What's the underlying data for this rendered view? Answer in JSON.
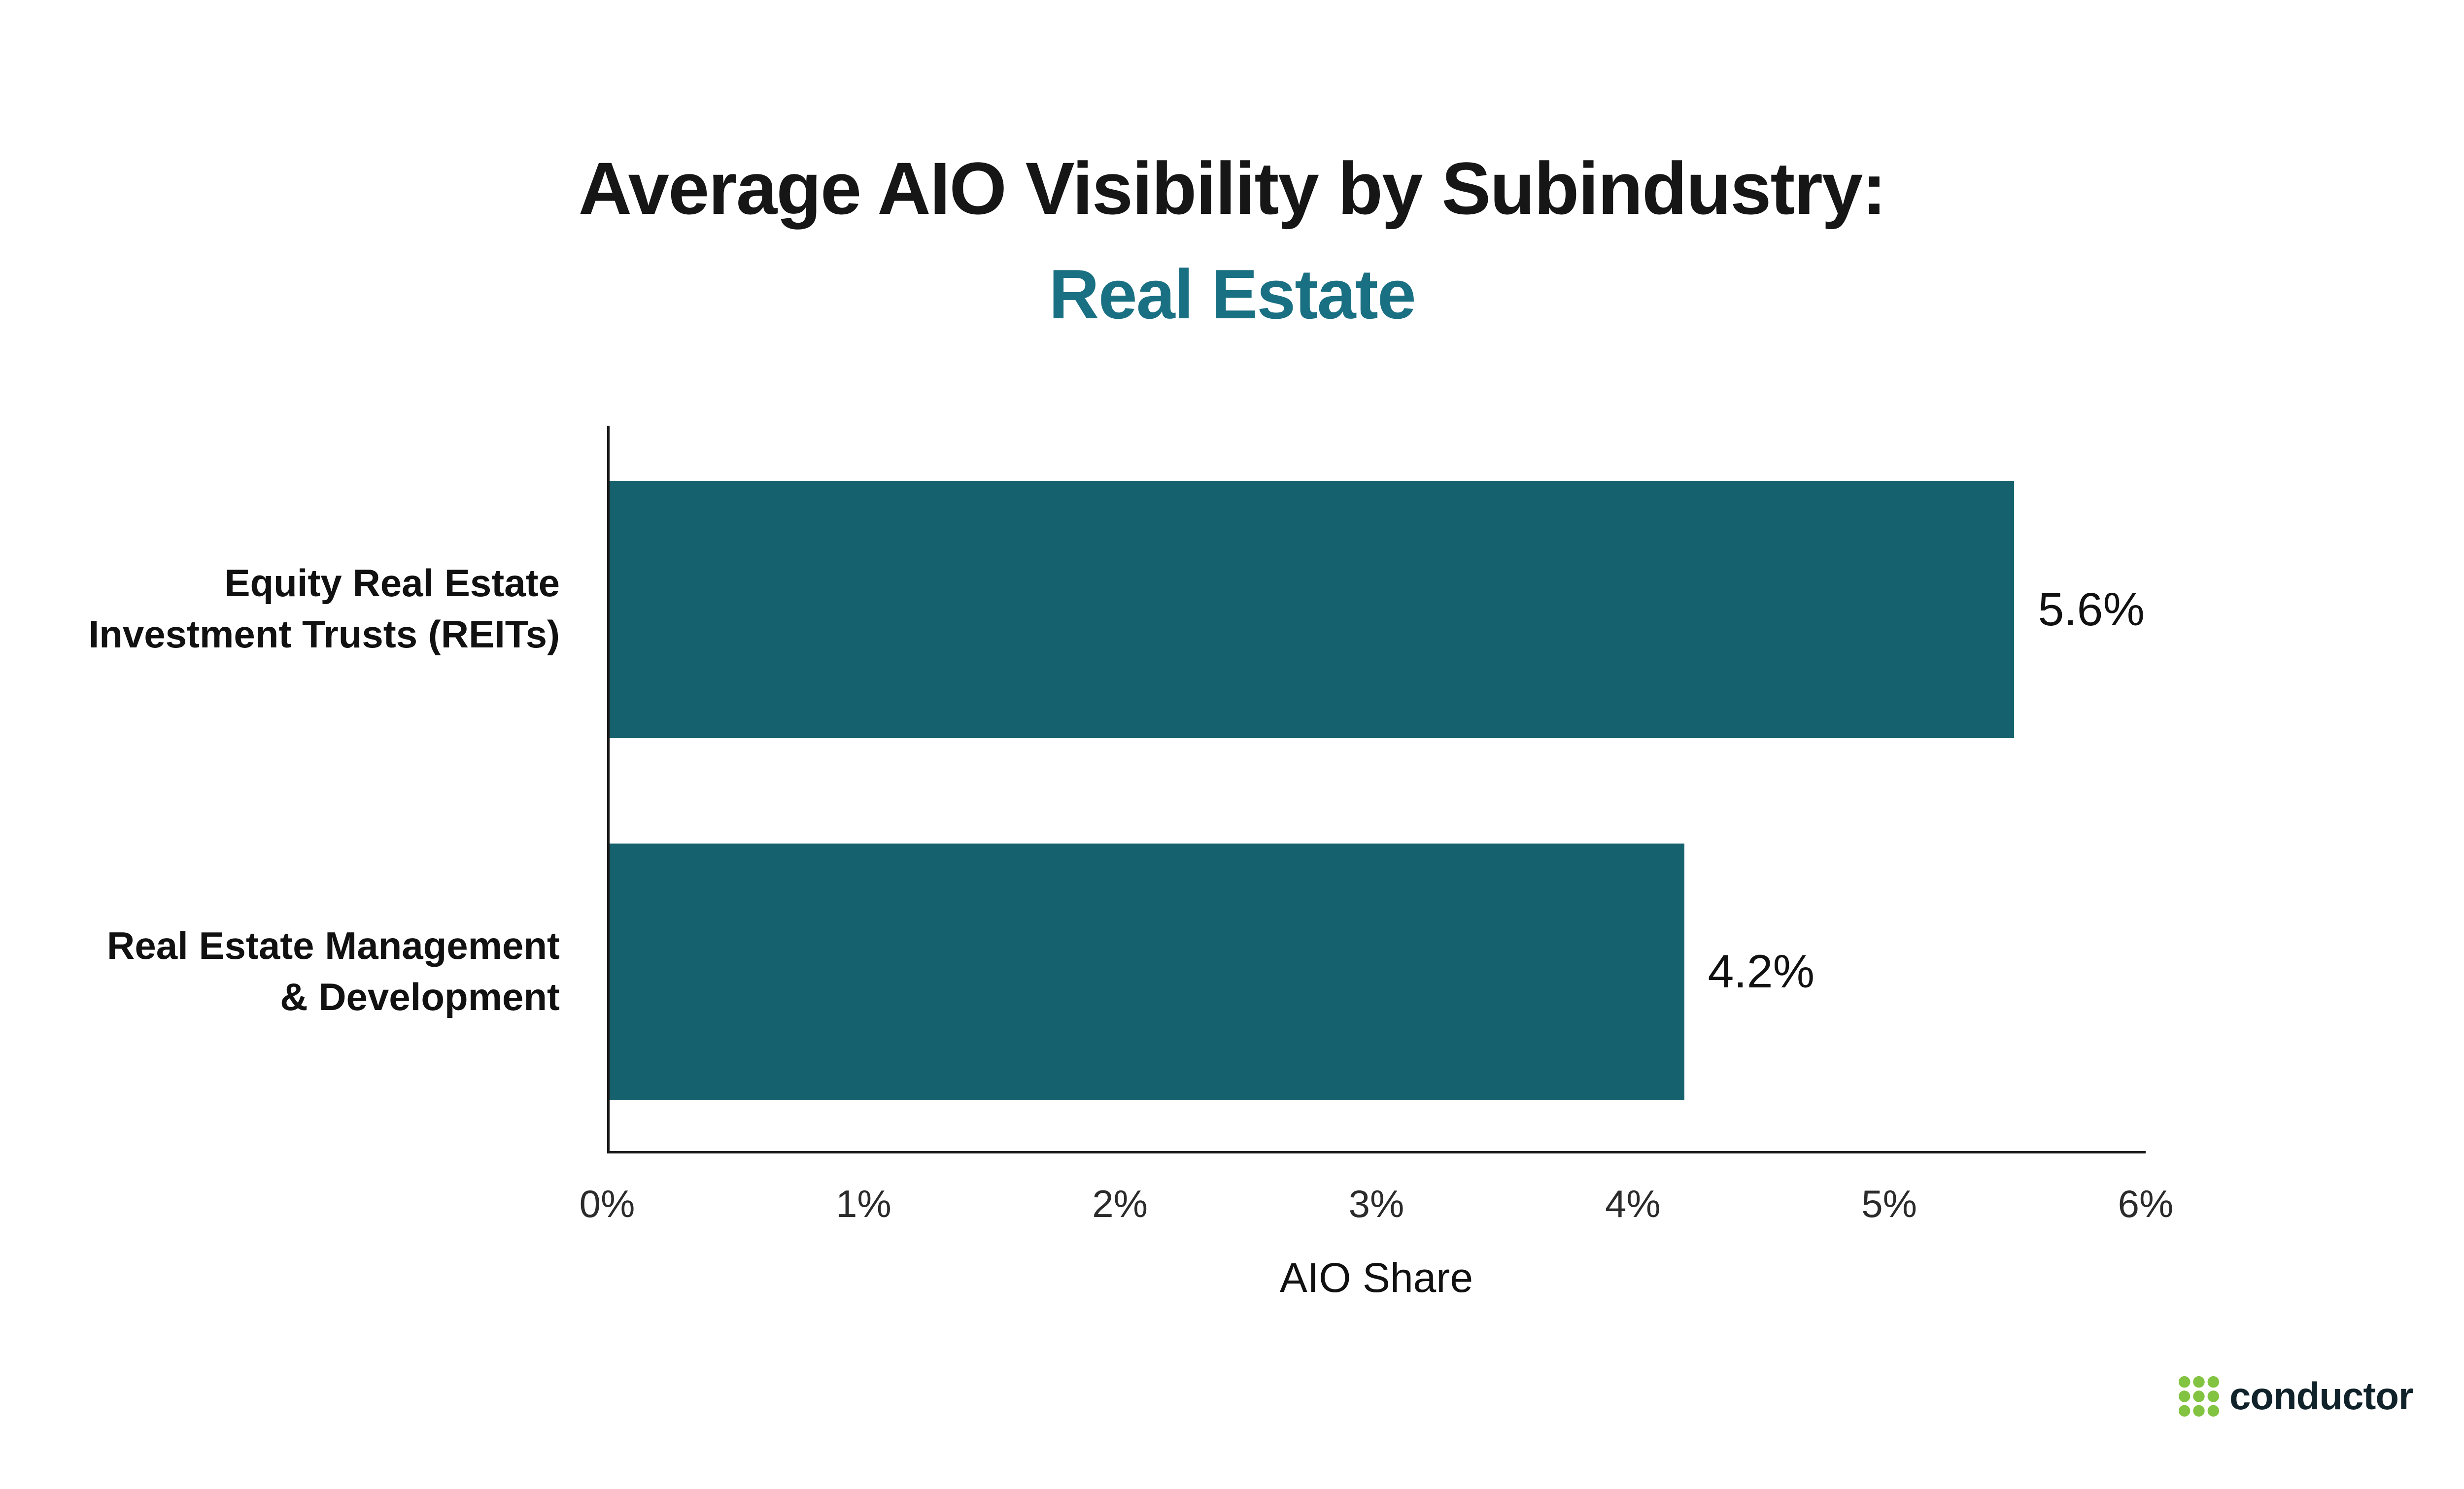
{
  "title": "Average AIO Visibility by Subindustry:",
  "subtitle": "Real Estate",
  "colors": {
    "bar": "#15616d",
    "subtitle": "#1a7083",
    "axis": "#1a1a1a",
    "logo_green": "#82c341"
  },
  "chart_data": {
    "type": "bar",
    "orientation": "horizontal",
    "title": "Average AIO Visibility by Subindustry: Real Estate",
    "xlabel": "AIO Share",
    "ylabel": "",
    "xlim": [
      0,
      6
    ],
    "x_ticks": [
      "0%",
      "1%",
      "2%",
      "3%",
      "4%",
      "5%",
      "6%"
    ],
    "grid": false,
    "legend": false,
    "categories": [
      "Equity Real Estate Investment Trusts (REITs)",
      "Real Estate Management & Development"
    ],
    "values": [
      5.6,
      4.2
    ],
    "rows": [
      {
        "label_line1": "Equity Real Estate",
        "label_line2": "Investment Trusts (REITs)",
        "value": 5.6,
        "value_label": "5.6%"
      },
      {
        "label_line1": "Real Estate Management",
        "label_line2": "& Development",
        "value": 4.2,
        "value_label": "4.2%"
      }
    ]
  },
  "footer": {
    "brand": "conductor"
  }
}
